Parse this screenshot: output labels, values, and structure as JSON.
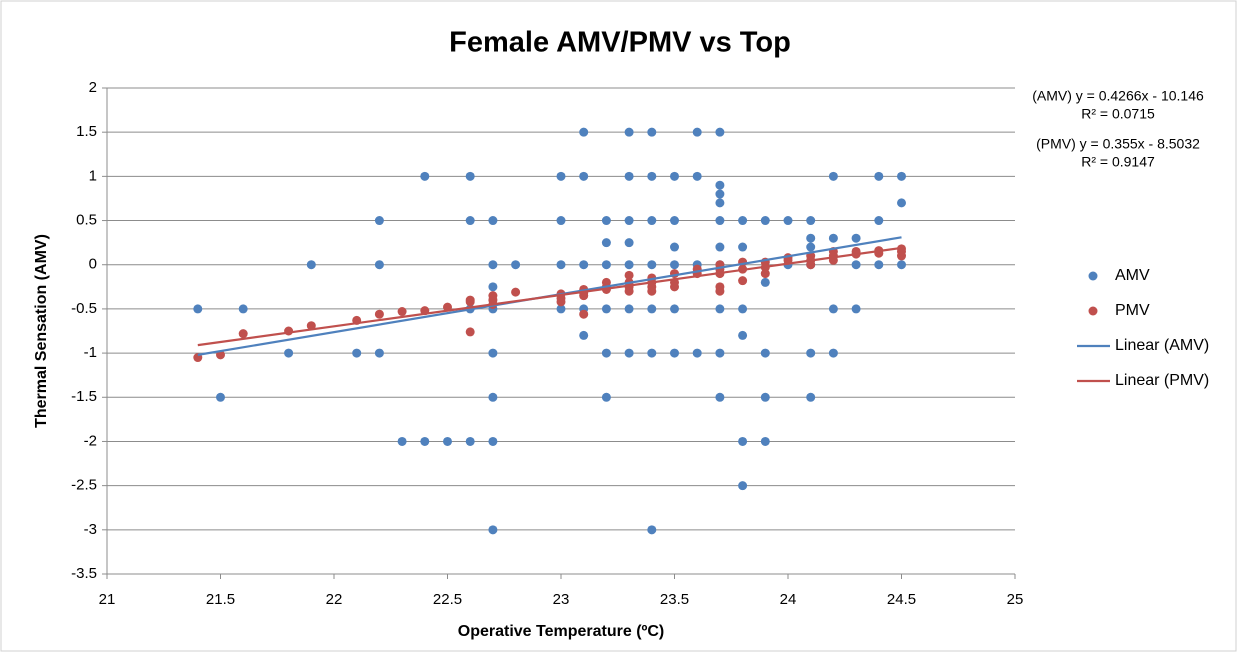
{
  "chart_data": {
    "type": "scatter",
    "title": "Female AMV/PMV vs Top",
    "x_label": "Operative Temperature (ºC)",
    "y_label": "Thermal Sensation (AMV)",
    "annotations": [
      "(AMV) y = 0.4266x - 10.146",
      "R² = 0.0715",
      "(PMV) y = 0.355x - 8.5032",
      "R² = 0.9147"
    ],
    "xlim": [
      21,
      25
    ],
    "xticks": [
      21,
      21.5,
      22,
      22.5,
      23,
      23.5,
      24,
      24.5,
      25
    ],
    "ylim": [
      -3.5,
      2
    ],
    "yticks": [
      2,
      1.5,
      1,
      0.5,
      0,
      -0.5,
      -1,
      -1.5,
      -2,
      -2.5,
      -3,
      -3.5
    ],
    "grid": true,
    "legend": "right",
    "series": [
      {
        "name": "AMV",
        "color": "#4f81bd",
        "mode": "markers",
        "x": [
          21.4,
          21.5,
          21.6,
          21.8,
          21.9,
          22.1,
          22.2,
          22.2,
          22.2,
          22.3,
          22.4,
          22.4,
          22.5,
          22.6,
          22.6,
          22.6,
          22.6,
          22.7,
          22.7,
          22.7,
          22.7,
          22.7,
          22.7,
          22.7,
          22.7,
          22.8,
          23,
          23,
          23,
          23,
          23.1,
          23.1,
          23.1,
          23.1,
          23.1,
          23.2,
          23.2,
          23.2,
          23.2,
          23.2,
          23.2,
          23.3,
          23.3,
          23.3,
          23.3,
          23.3,
          23.3,
          23.3,
          23.4,
          23.4,
          23.4,
          23.4,
          23.4,
          23.4,
          23.4,
          23.5,
          23.5,
          23.5,
          23.5,
          23.5,
          23.5,
          23.6,
          23.6,
          23.6,
          23.6,
          23.7,
          23.7,
          23.7,
          23.7,
          23.7,
          23.7,
          23.7,
          23.7,
          23.7,
          23.7,
          23.8,
          23.8,
          23.8,
          23.8,
          23.8,
          23.8,
          23.9,
          23.9,
          23.9,
          23.9,
          23.9,
          24,
          24,
          24.1,
          24.1,
          24.1,
          24.1,
          24.1,
          24.1,
          24.2,
          24.2,
          24.2,
          24.2,
          24.3,
          24.3,
          24.3,
          24.4,
          24.4,
          24.4,
          24.5,
          24.5,
          24.5
        ],
        "values": [
          -0.5,
          -1.5,
          -0.5,
          -1,
          0,
          -1,
          0.5,
          0,
          -1,
          -2,
          1,
          -2,
          -2,
          1,
          0.5,
          -0.5,
          -2,
          0.5,
          0,
          -0.25,
          -0.5,
          -1,
          -1.5,
          -2,
          -3,
          0,
          1,
          0.5,
          0,
          -0.5,
          1.5,
          1,
          0,
          -0.5,
          -0.8,
          0.5,
          0.25,
          0,
          -0.5,
          -1,
          -1.5,
          1.5,
          1,
          0.5,
          0.25,
          0,
          -0.5,
          -1,
          1.5,
          1,
          0.5,
          0,
          -0.5,
          -1,
          -3,
          1,
          0.5,
          0.2,
          0,
          -0.5,
          -1,
          1.5,
          1,
          0,
          -1,
          1.5,
          0.9,
          0.8,
          0.7,
          0.5,
          0.2,
          0,
          -0.5,
          -1,
          -1.5,
          0.5,
          0.2,
          -0.5,
          -0.8,
          -2,
          -2.5,
          0.5,
          -0.2,
          -1,
          -1.5,
          -2,
          0.5,
          0,
          0.5,
          0.3,
          0.2,
          0,
          -1,
          -1.5,
          1,
          0.3,
          -0.5,
          -1,
          0.3,
          0,
          -0.5,
          1,
          0.5,
          0,
          1,
          0.7,
          0
        ]
      },
      {
        "name": "PMV",
        "color": "#c0504d",
        "mode": "markers",
        "x": [
          21.4,
          21.5,
          21.6,
          21.8,
          21.9,
          22.1,
          22.2,
          22.3,
          22.4,
          22.5,
          22.6,
          22.6,
          22.6,
          22.7,
          22.7,
          22.7,
          22.8,
          23,
          23,
          23,
          23.1,
          23.1,
          23.1,
          23.1,
          23.2,
          23.2,
          23.2,
          23.3,
          23.3,
          23.3,
          23.3,
          23.4,
          23.4,
          23.4,
          23.4,
          23.5,
          23.5,
          23.5,
          23.6,
          23.6,
          23.7,
          23.7,
          23.7,
          23.7,
          23.7,
          23.8,
          23.8,
          23.8,
          23.9,
          23.9,
          23.9,
          24,
          24,
          24.1,
          24.1,
          24.1,
          24.2,
          24.2,
          24.2,
          24.3,
          24.3,
          24.4,
          24.4,
          24.5,
          24.5,
          24.5
        ],
        "values": [
          -1.05,
          -1.02,
          -0.78,
          -0.75,
          -0.69,
          -0.63,
          -0.56,
          -0.53,
          -0.52,
          -0.48,
          -0.4,
          -0.42,
          -0.76,
          -0.35,
          -0.4,
          -0.45,
          -0.31,
          -0.33,
          -0.38,
          -0.42,
          -0.28,
          -0.32,
          -0.35,
          -0.56,
          -0.2,
          -0.25,
          -0.28,
          -0.12,
          -0.2,
          -0.25,
          -0.3,
          -0.15,
          -0.2,
          -0.25,
          -0.3,
          -0.1,
          -0.2,
          -0.25,
          -0.05,
          -0.1,
          0,
          -0.05,
          -0.1,
          -0.25,
          -0.3,
          0.03,
          -0.05,
          -0.18,
          0.03,
          -0.03,
          -0.1,
          0.08,
          0.05,
          0.1,
          0.05,
          0,
          0.15,
          0.1,
          0.05,
          0.15,
          0.12,
          0.16,
          0.13,
          0.18,
          0.15,
          0.1
        ]
      },
      {
        "name": "Linear (AMV)",
        "color": "#4f81bd",
        "mode": "lines",
        "x": [
          21.4,
          24.5
        ],
        "values": [
          -1.02,
          0.31
        ]
      },
      {
        "name": "Linear (PMV)",
        "color": "#c0504d",
        "mode": "lines",
        "x": [
          21.4,
          24.5
        ],
        "values": [
          -0.91,
          0.19
        ]
      }
    ]
  }
}
